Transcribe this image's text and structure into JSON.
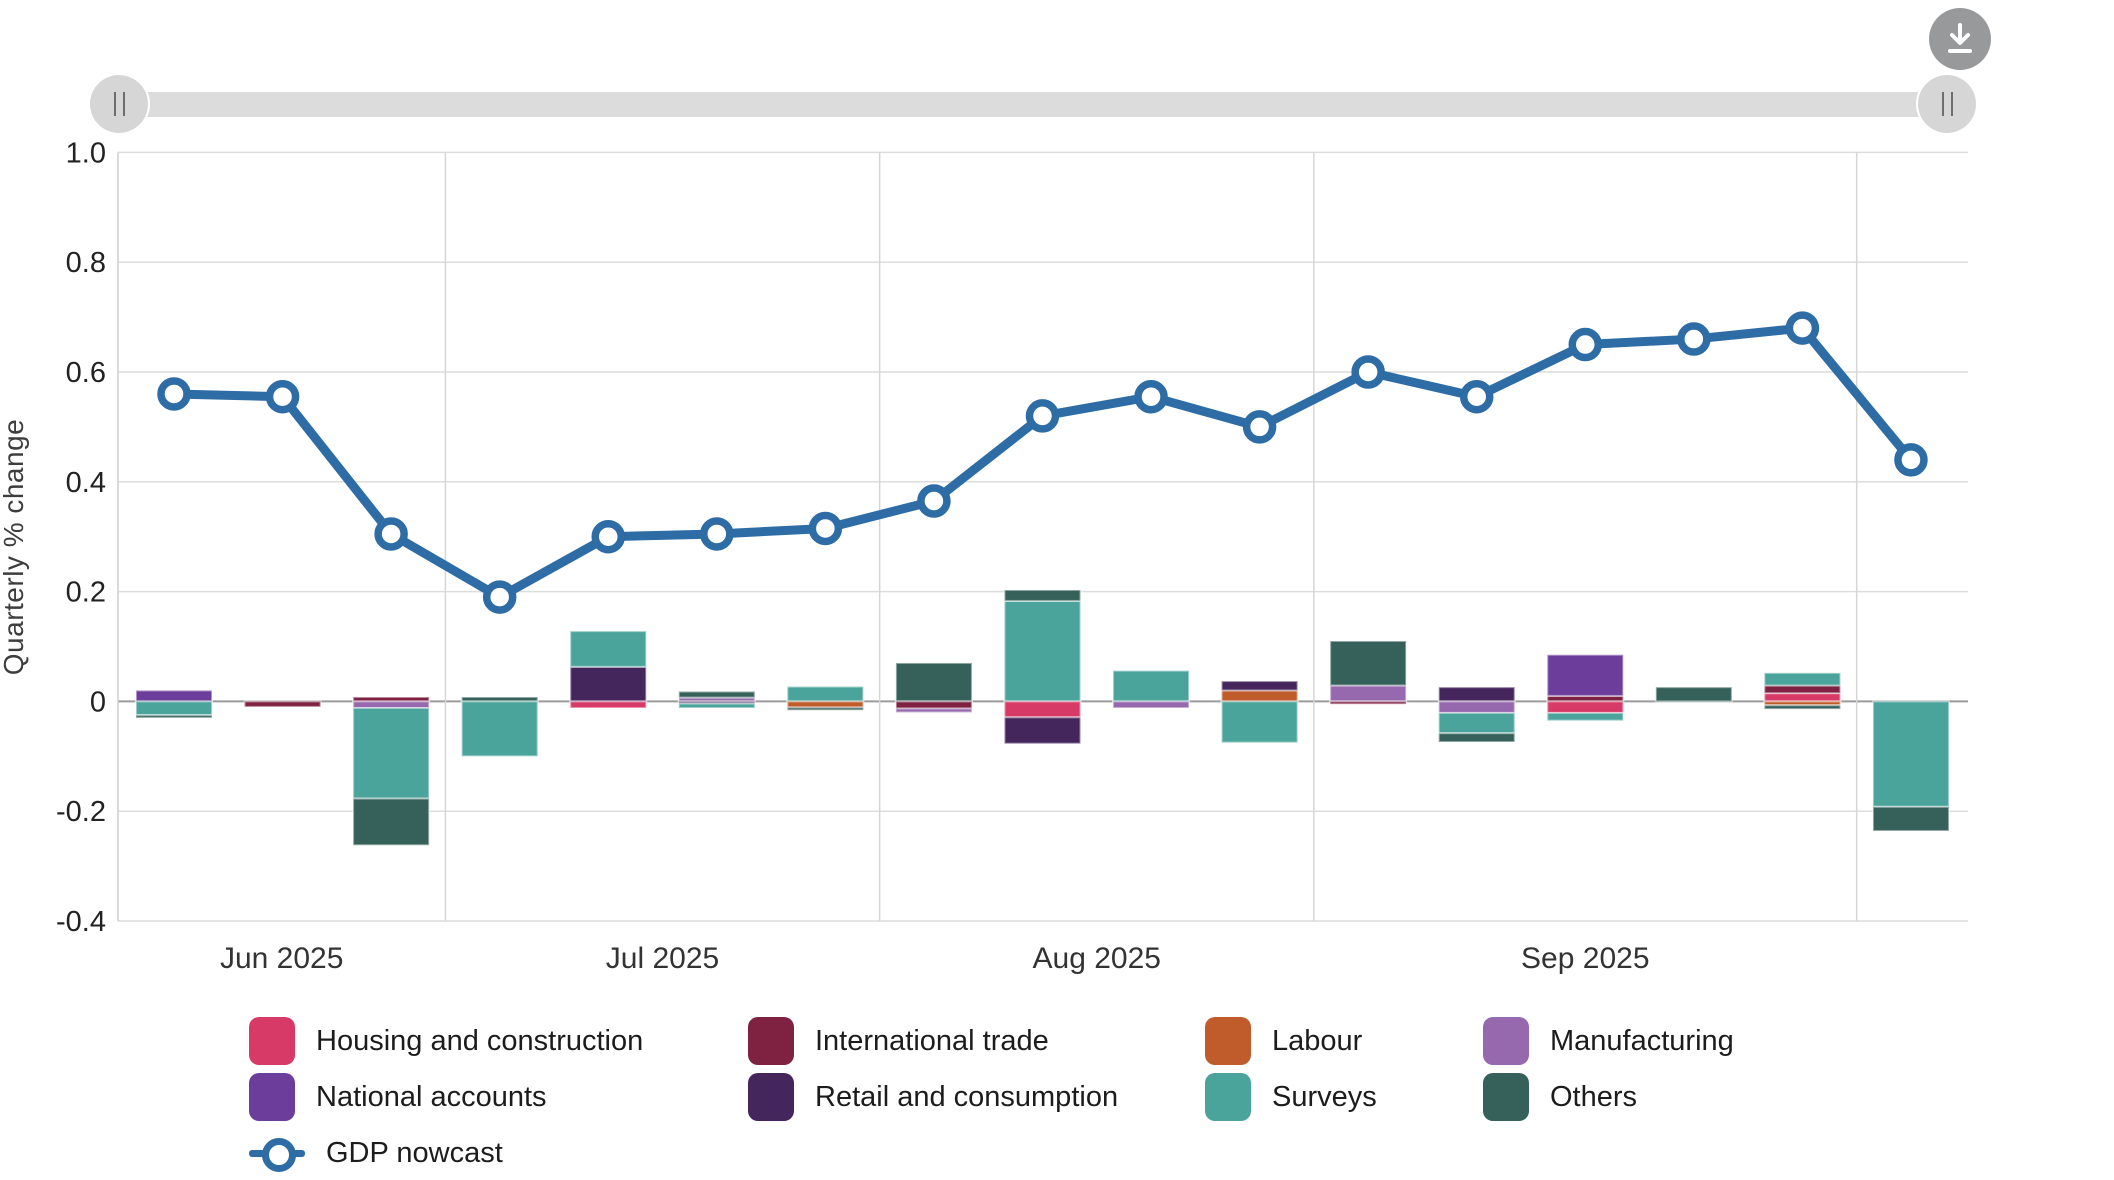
{
  "controls": {
    "download_icon": "download-icon",
    "slider": {
      "left_handle": "range-start",
      "right_handle": "range-end"
    }
  },
  "chart_data": {
    "type": "combo-stacked-bar-line",
    "title": "",
    "ylabel": "Quarterly % change",
    "ylim": [
      -0.4,
      1.0
    ],
    "y_ticks": [
      {
        "value": 1.0,
        "label": "1.0"
      },
      {
        "value": 0.8,
        "label": "0.8"
      },
      {
        "value": 0.6,
        "label": "0.6"
      },
      {
        "value": 0.4,
        "label": "0.4"
      },
      {
        "value": 0.2,
        "label": "0.2"
      },
      {
        "value": 0.0,
        "label": "0"
      },
      {
        "value": -0.2,
        "label": "-0.2"
      },
      {
        "value": -0.4,
        "label": "-0.4"
      }
    ],
    "x_month_labels": [
      "Jun 2025",
      "Jul 2025",
      "Aug 2025",
      "Sep 2025"
    ],
    "month_boundary_after_index": [
      2,
      6,
      10,
      15
    ],
    "grid": true,
    "legend_position": "bottom",
    "categories": {
      "housing": {
        "label": "Housing and construction",
        "color": "#d83a68"
      },
      "trade": {
        "label": "International trade",
        "color": "#7f2242"
      },
      "labour": {
        "label": "Labour",
        "color": "#c05c2b"
      },
      "manufacturing": {
        "label": "Manufacturing",
        "color": "#9668ae"
      },
      "national": {
        "label": "National accounts",
        "color": "#6c3d9b"
      },
      "retail": {
        "label": "Retail and consumption",
        "color": "#44265c"
      },
      "surveys": {
        "label": "Surveys",
        "color": "#4aa49c"
      },
      "others": {
        "label": "Others",
        "color": "#35615a"
      }
    },
    "line": {
      "name": "GDP nowcast",
      "color": "#2d6ca5",
      "values": [
        0.56,
        0.555,
        0.305,
        0.19,
        0.3,
        0.305,
        0.315,
        0.365,
        0.52,
        0.555,
        0.5,
        0.6,
        0.555,
        0.65,
        0.66,
        0.68,
        0.44
      ]
    },
    "bars": [
      {
        "segments": [
          [
            "national",
            0.02
          ],
          [
            "surveys",
            -0.025
          ],
          [
            "others",
            -0.005
          ]
        ]
      },
      {
        "segments": [
          [
            "trade",
            -0.01
          ]
        ]
      },
      {
        "segments": [
          [
            "trade",
            0.008
          ],
          [
            "manufacturing",
            -0.012
          ],
          [
            "surveys",
            -0.165
          ],
          [
            "others",
            -0.085
          ]
        ]
      },
      {
        "segments": [
          [
            "others",
            0.008
          ],
          [
            "surveys",
            -0.1
          ]
        ]
      },
      {
        "segments": [
          [
            "retail",
            0.063
          ],
          [
            "surveys",
            0.065
          ],
          [
            "housing",
            -0.012
          ]
        ]
      },
      {
        "segments": [
          [
            "manufacturing",
            0.007
          ],
          [
            "others",
            0.011
          ],
          [
            "retail",
            -0.004
          ],
          [
            "surveys",
            -0.008
          ]
        ]
      },
      {
        "segments": [
          [
            "surveys",
            0.027
          ],
          [
            "labour",
            -0.011
          ],
          [
            "others",
            -0.005
          ]
        ]
      },
      {
        "segments": [
          [
            "others",
            0.07
          ],
          [
            "trade",
            -0.013
          ],
          [
            "manufacturing",
            -0.007
          ]
        ]
      },
      {
        "segments": [
          [
            "surveys",
            0.183
          ],
          [
            "others",
            0.02
          ],
          [
            "housing",
            -0.029
          ],
          [
            "retail",
            -0.048
          ]
        ]
      },
      {
        "segments": [
          [
            "surveys",
            0.056
          ],
          [
            "manufacturing",
            -0.012
          ]
        ]
      },
      {
        "segments": [
          [
            "labour",
            0.02
          ],
          [
            "retail",
            0.017
          ],
          [
            "surveys",
            -0.075
          ]
        ]
      },
      {
        "segments": [
          [
            "manufacturing",
            0.029
          ],
          [
            "others",
            0.081
          ],
          [
            "trade",
            -0.005
          ]
        ]
      },
      {
        "segments": [
          [
            "retail",
            0.026
          ],
          [
            "manufacturing",
            -0.021
          ],
          [
            "surveys",
            -0.037
          ],
          [
            "others",
            -0.016
          ]
        ]
      },
      {
        "segments": [
          [
            "trade",
            0.01
          ],
          [
            "national",
            0.075
          ],
          [
            "housing",
            -0.021
          ],
          [
            "surveys",
            -0.014
          ]
        ]
      },
      {
        "segments": [
          [
            "others",
            0.026
          ]
        ]
      },
      {
        "segments": [
          [
            "housing",
            0.015
          ],
          [
            "trade",
            0.014
          ],
          [
            "surveys",
            0.023
          ],
          [
            "labour",
            -0.007
          ],
          [
            "others",
            -0.007
          ]
        ]
      },
      {
        "segments": [
          [
            "surveys",
            -0.192
          ],
          [
            "others",
            -0.044
          ]
        ]
      }
    ],
    "legend_order": [
      "housing",
      "trade",
      "labour",
      "manufacturing",
      "national",
      "retail",
      "surveys",
      "others"
    ]
  }
}
